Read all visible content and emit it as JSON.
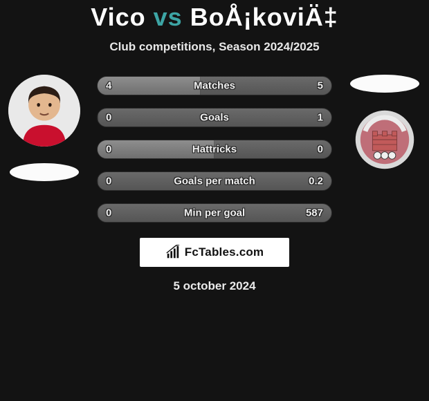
{
  "header": {
    "player1": "Vico",
    "vs": "vs",
    "player2": "BoÅ¡koviÄ‡",
    "subtitle": "Club competitions, Season 2024/2025",
    "title_fontsize": 36,
    "title_color_names": "#ffffff",
    "title_color_vs": "#3da5a5"
  },
  "colors": {
    "page_bg": "#131313",
    "bar_bg_start": "#6a6a6a",
    "bar_bg_end": "#555555",
    "bar_fill_start": "#8e8e8e",
    "bar_fill_end": "#6f6f6f",
    "text": "#f0f0f0",
    "outline": "#222222",
    "badge_bg": "#ffffff",
    "badge_text": "#111111",
    "ellipse_bg": "#fbfbfb"
  },
  "bars": [
    {
      "label": "Matches",
      "left": "4",
      "right": "5",
      "left_pct": 44
    },
    {
      "label": "Goals",
      "left": "0",
      "right": "1",
      "left_pct": 0
    },
    {
      "label": "Hattricks",
      "left": "0",
      "right": "0",
      "left_pct": 50
    },
    {
      "label": "Goals per match",
      "left": "0",
      "right": "0.2",
      "left_pct": 0
    },
    {
      "label": "Min per goal",
      "left": "0",
      "right": "587",
      "left_pct": 0
    }
  ],
  "avatars": {
    "left": {
      "skin": "#e3b78f",
      "hair": "#2c1d15",
      "shirt": "#c9102e",
      "bg": "#e9e9e9"
    },
    "right_crest": {
      "ring": "#d9d9d9",
      "inner": "#bf6e78",
      "brick": "#c15a5a",
      "top": "#e2e2e2",
      "text_band": "#ececec"
    }
  },
  "footer": {
    "brand": "FcTables.com",
    "date": "5 october 2024"
  }
}
